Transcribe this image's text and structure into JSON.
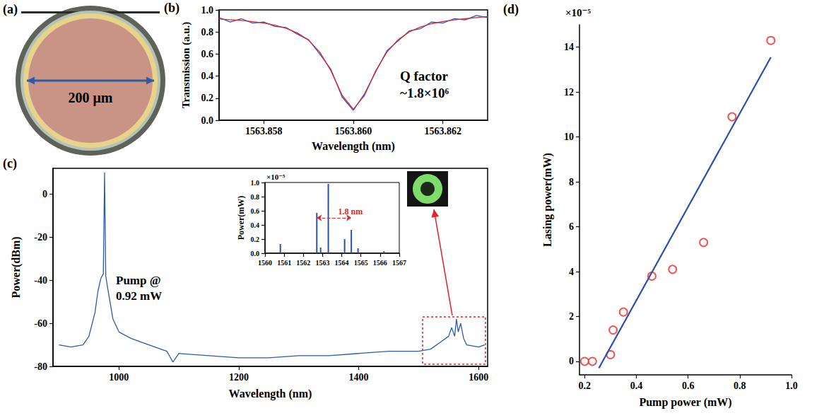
{
  "chart_data": [
    {
      "type": "image",
      "label": "(a)",
      "annotations": [
        {
          "text": "200 μm"
        }
      ]
    },
    {
      "type": "line",
      "label": "(b)",
      "xlabel": "Wavelength (nm)",
      "ylabel": "Transmission (a.u.)",
      "series": [
        {
          "color": "#2b55c8",
          "x": [
            1563.857,
            1563.85725,
            1563.8575,
            1563.85775,
            1563.858,
            1563.85825,
            1563.8585,
            1563.85875,
            1563.859,
            1563.85925,
            1563.8595,
            1563.85975,
            1563.86,
            1563.86025,
            1563.8605,
            1563.86075,
            1563.861,
            1563.86125,
            1563.8615,
            1563.86175,
            1563.862,
            1563.86225,
            1563.8625,
            1563.86275,
            1563.863
          ],
          "values": [
            0.93,
            0.89,
            0.92,
            0.88,
            0.89,
            0.85,
            0.84,
            0.78,
            0.73,
            0.6,
            0.46,
            0.21,
            0.09,
            0.24,
            0.44,
            0.63,
            0.72,
            0.81,
            0.83,
            0.89,
            0.88,
            0.92,
            0.91,
            0.95,
            0.93
          ]
        },
        {
          "color": "#e0262b",
          "x": [
            1563.857,
            1563.85725,
            1563.8575,
            1563.85775,
            1563.858,
            1563.85825,
            1563.8585,
            1563.85875,
            1563.859,
            1563.85925,
            1563.8595,
            1563.85975,
            1563.86,
            1563.86025,
            1563.8605,
            1563.86075,
            1563.861,
            1563.86125,
            1563.8615,
            1563.86175,
            1563.862,
            1563.86225,
            1563.8625,
            1563.86275,
            1563.863
          ],
          "values": [
            0.917,
            0.911,
            0.904,
            0.894,
            0.88,
            0.861,
            0.833,
            0.791,
            0.725,
            0.618,
            0.448,
            0.226,
            0.1,
            0.226,
            0.448,
            0.618,
            0.73,
            0.8,
            0.845,
            0.875,
            0.895,
            0.91,
            0.92,
            0.93,
            0.94
          ]
        }
      ],
      "xlim": [
        1563.857,
        1563.863
      ],
      "xticks": [
        1563.858,
        {
          "value": 1563.86,
          "label": "1563.860"
        },
        1563.862
      ],
      "ylim": [
        0,
        1
      ],
      "yticks": [
        {
          "value": 0,
          "label": "0.0"
        },
        0.2,
        0.4,
        0.6,
        0.8,
        {
          "value": 1,
          "label": "1.0"
        }
      ],
      "grid": false,
      "annotations": [
        {
          "text": "Q factor"
        },
        {
          "text": "~1.8×10⁶"
        }
      ]
    },
    {
      "type": "line",
      "label": "(c)",
      "xlabel": "Wavelength (nm)",
      "ylabel": "Power(dBm)",
      "series": [
        {
          "color": "#2a5caa",
          "x": [
            900,
            920,
            940,
            950,
            960,
            965,
            970,
            974,
            976,
            978,
            982,
            990,
            1000,
            1020,
            1040,
            1060,
            1080,
            1090,
            1100,
            1150,
            1200,
            1250,
            1300,
            1350,
            1400,
            1450,
            1500,
            1520,
            1540,
            1550,
            1555,
            1560,
            1563,
            1566,
            1570,
            1575,
            1580,
            1600,
            1610
          ],
          "values": [
            -70,
            -71,
            -70,
            -66,
            -55,
            -45,
            -39,
            -37,
            10,
            -38,
            -45,
            -58,
            -64,
            -67,
            -69,
            -71,
            -73,
            -78,
            -74,
            -75,
            -76,
            -76,
            -75,
            -75,
            -74,
            -73,
            -73,
            -72,
            -68,
            -66,
            -62,
            -66,
            -58,
            -64,
            -60,
            -67,
            -70,
            -71,
            -70
          ]
        }
      ],
      "xlim": [
        890,
        1615
      ],
      "xticks": [
        1000,
        1200,
        1400,
        1600
      ],
      "ylim": [
        -80,
        12
      ],
      "yticks": [
        -80,
        -60,
        -40,
        -20,
        0
      ],
      "grid": false,
      "annotations": [
        {
          "text": "Pump @"
        },
        {
          "text": "0.92 mW"
        }
      ]
    },
    {
      "type": "stem",
      "ylabel": "Power(mW)",
      "series": [
        {
          "color": "#2a52a8",
          "x": [
            1560.8,
            1562.7,
            1562.9,
            1563.3,
            1564.15,
            1564.5,
            1564.85,
            1566.2
          ],
          "values": [
            0.13,
            0.57,
            0.08,
            0.98,
            0.2,
            0.33,
            0.07,
            0.03
          ]
        }
      ],
      "xlim": [
        1560,
        1567
      ],
      "xticks": [
        1560,
        1561,
        1562,
        1563,
        1564,
        1565,
        1566,
        1567
      ],
      "ylim": [
        0,
        1
      ],
      "yticks": [
        {
          "value": 0,
          "label": "0.0"
        },
        0.2,
        0.4,
        0.6,
        0.8,
        {
          "value": 1,
          "label": "1.0"
        }
      ],
      "grid": false,
      "annotations": [
        {
          "text": "×10⁻⁵"
        },
        {
          "text": "1.8 nm",
          "x": [
            1562.7,
            1564.5
          ],
          "y": 0.5
        }
      ]
    },
    {
      "type": "scatter",
      "label": "(d)",
      "xlabel": "Pump power (mW)",
      "ylabel": "Lasing power(mW)",
      "series": [
        {
          "type": "scatter",
          "marker": "o",
          "color": "#e8302a",
          "x": [
            0.2,
            0.23,
            0.3,
            0.31,
            0.35,
            0.46,
            0.54,
            0.66,
            0.77,
            0.92
          ],
          "values": [
            0,
            0,
            0.3,
            1.4,
            2.2,
            3.8,
            4.1,
            5.3,
            10.9,
            14.3
          ]
        },
        {
          "type": "line",
          "color": "#2b4fae",
          "x": [
            0.255,
            0.92
          ],
          "values": [
            -0.3,
            13.55
          ]
        }
      ],
      "xlim": [
        0.18,
        1
      ],
      "xticks": [
        0.2,
        0.4,
        0.6,
        0.8,
        {
          "value": 1,
          "label": "1.0"
        }
      ],
      "ylim": [
        -0.6,
        15
      ],
      "yticks": [
        0,
        2,
        4,
        6,
        8,
        10,
        12,
        14
      ],
      "grid": false,
      "annotations": [
        {
          "text": "×10⁻⁵"
        }
      ]
    }
  ]
}
